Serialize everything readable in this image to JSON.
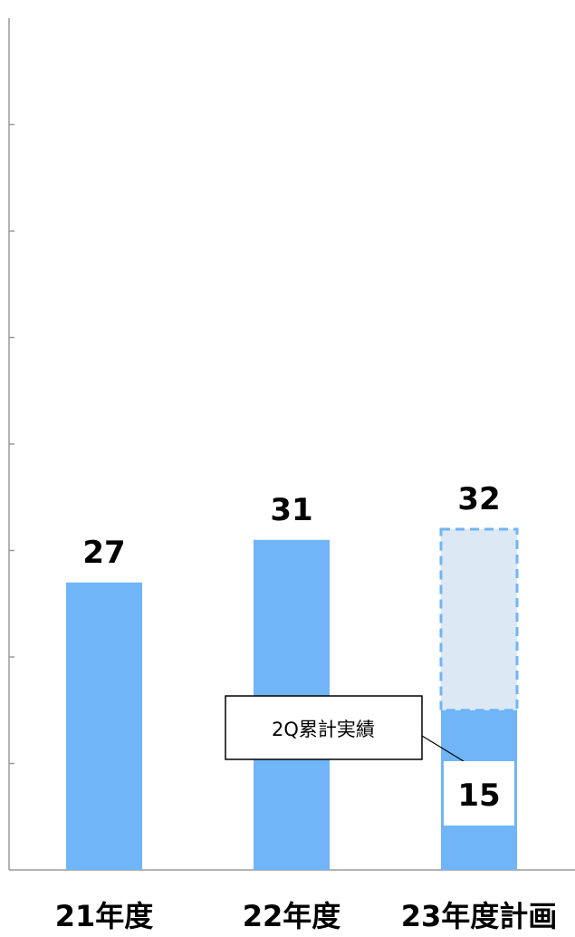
{
  "chart_data": {
    "type": "bar",
    "categories": [
      "21年度",
      "22年度",
      "23年度計画"
    ],
    "values": [
      27,
      31,
      32
    ],
    "actual_2q": {
      "category": "23年度計画",
      "value": 15,
      "label": "2Q累計実績"
    },
    "ylim": [
      0,
      80
    ],
    "y_tick_step": 10,
    "title": "",
    "xlabel": "",
    "ylabel": "",
    "grid": false,
    "colors": {
      "bar": "#6fb5f7",
      "plan_fill": "#dde8f5",
      "plan_border": "#6fb5f7",
      "axis": "#9a9a9a"
    }
  }
}
